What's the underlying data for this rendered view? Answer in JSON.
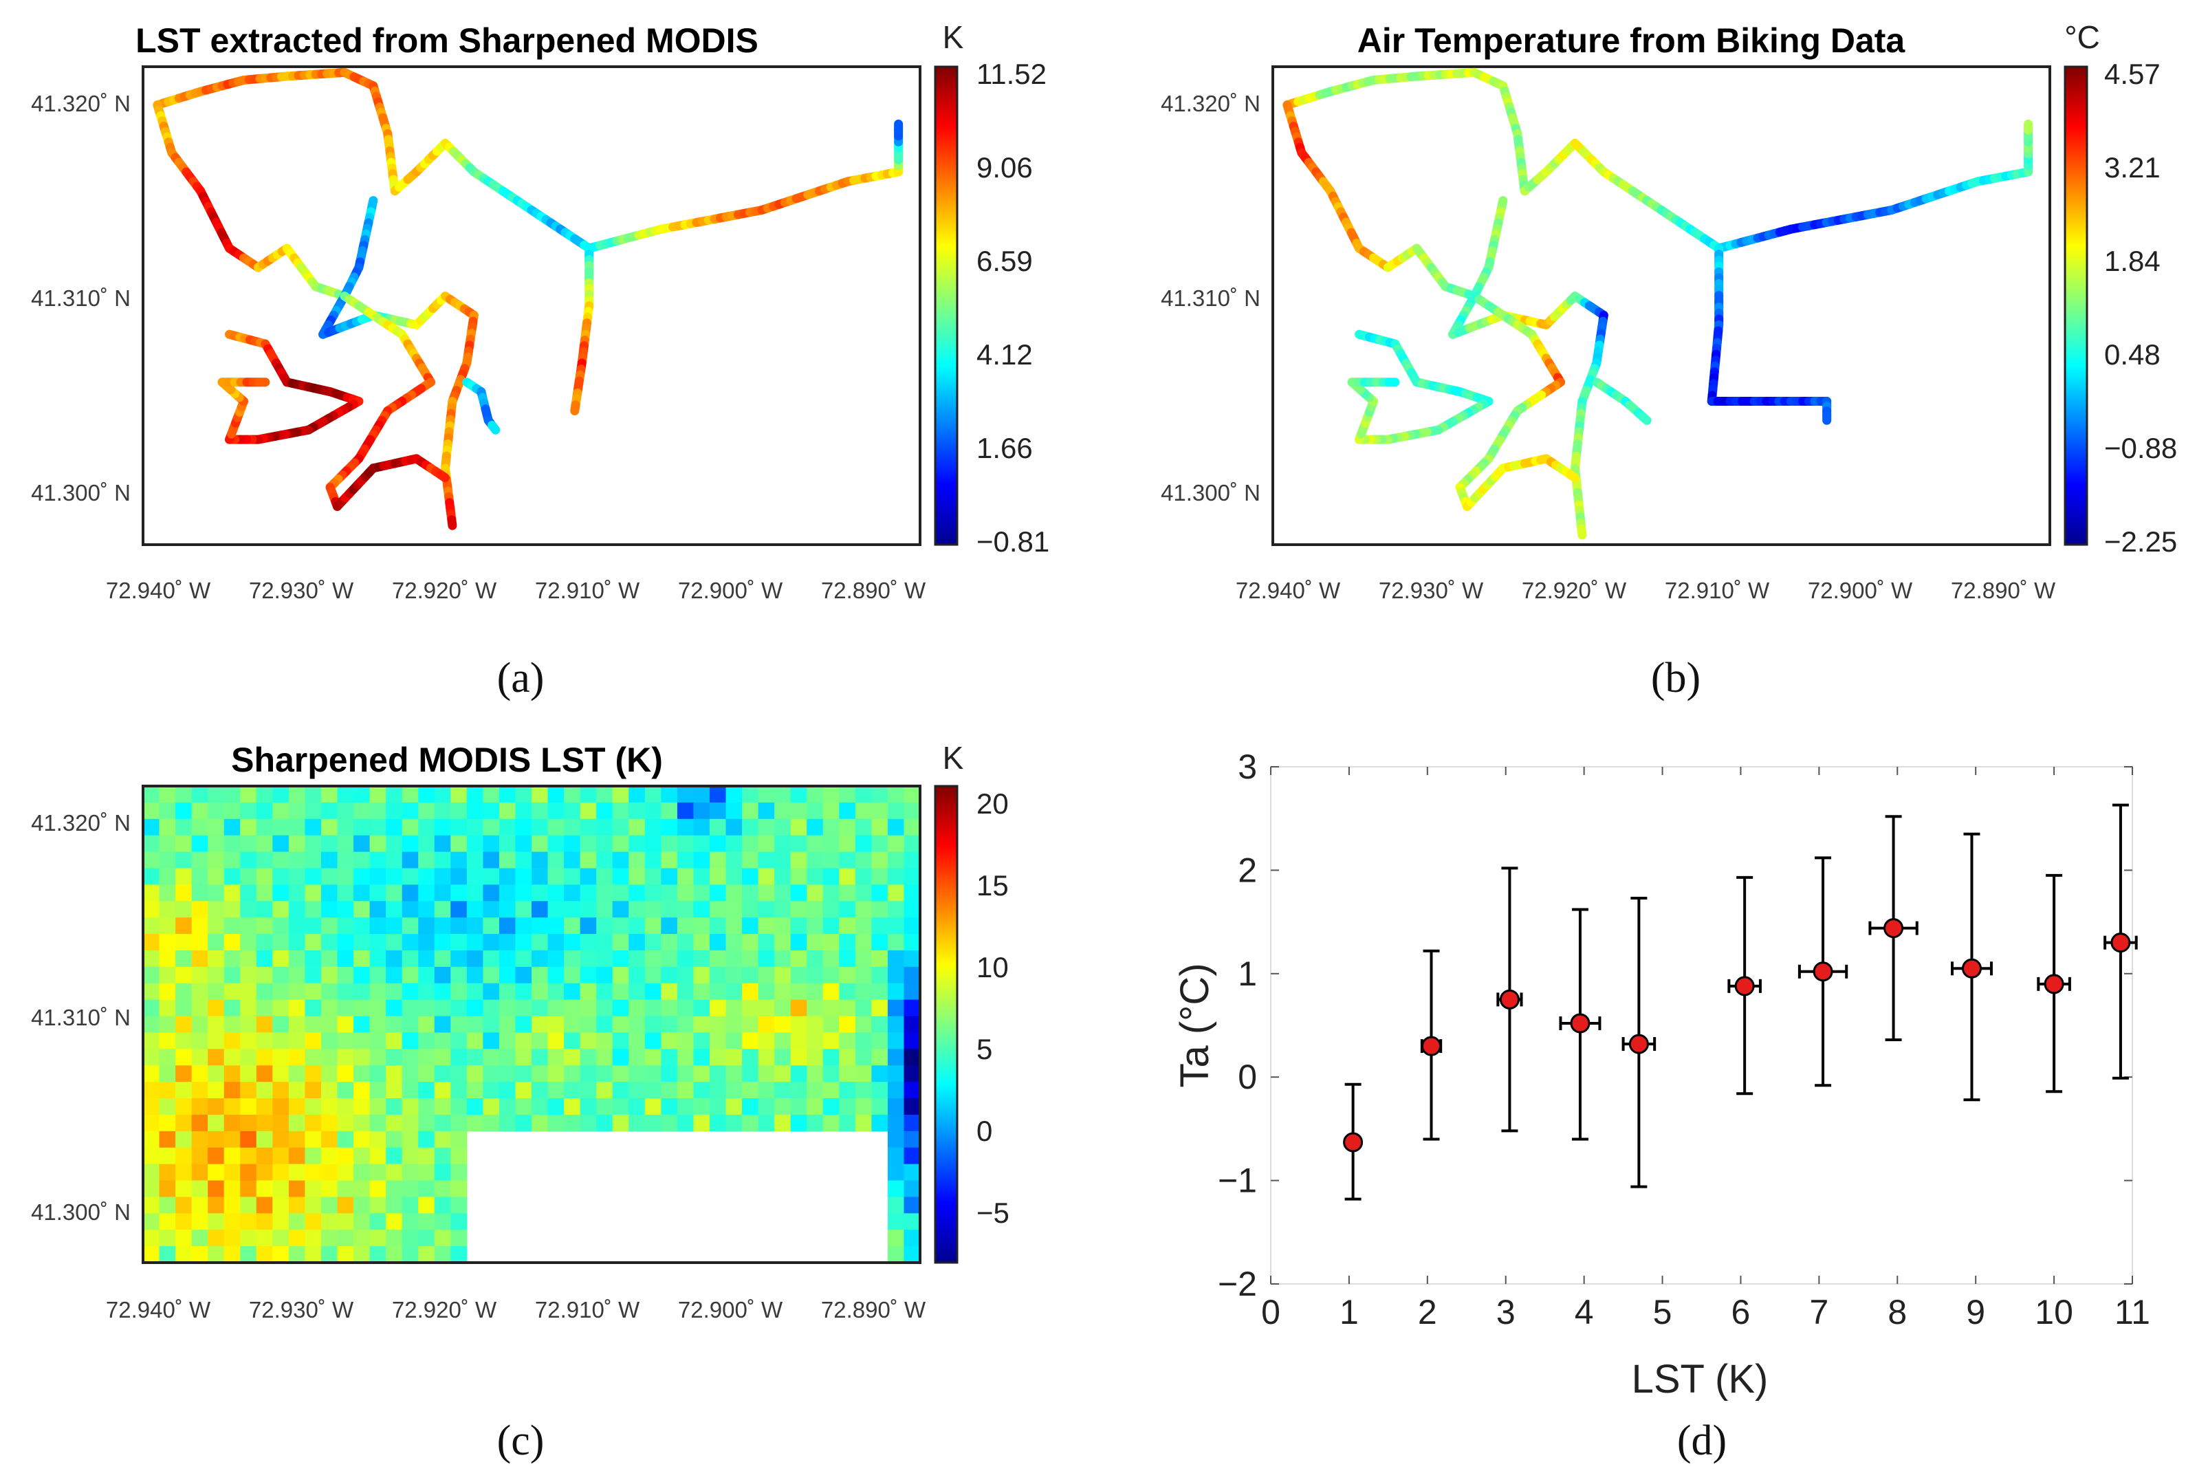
{
  "panels": {
    "a": {
      "title": "LST extracted from Sharpened MODIS",
      "unit": "K",
      "colorbar_ticks": [
        "11.52",
        "9.06",
        "6.59",
        "4.12",
        "1.66",
        "−0.81"
      ],
      "x_ticks": [
        "72.940˚ W",
        "72.930˚ W",
        "72.920˚ W",
        "72.910˚ W",
        "72.900˚ W",
        "72.890˚ W"
      ],
      "y_ticks": [
        "41.320˚ N",
        "41.310˚ N",
        "41.300˚ N"
      ],
      "label": "(a)"
    },
    "b": {
      "title": "Air Temperature from Biking Data",
      "unit": "°C",
      "colorbar_ticks": [
        "4.57",
        "3.21",
        "1.84",
        "0.48",
        "−0.88",
        "−2.25"
      ],
      "x_ticks": [
        "72.940˚ W",
        "72.930˚ W",
        "72.920˚ W",
        "72.910˚ W",
        "72.900˚ W",
        "72.890˚ W"
      ],
      "y_ticks": [
        "41.320˚ N",
        "41.310˚ N",
        "41.300˚ N"
      ],
      "label": "(b)"
    },
    "c": {
      "title": "Sharpened MODIS LST (K)",
      "unit": "K",
      "colorbar_ticks": [
        "20",
        "15",
        "10",
        "5",
        "0",
        "−5"
      ],
      "x_ticks": [
        "72.940˚ W",
        "72.930˚ W",
        "72.920˚ W",
        "72.910˚ W",
        "72.900˚ W",
        "72.890˚ W"
      ],
      "y_ticks": [
        "41.320˚ N",
        "41.310˚ N",
        "41.300˚ N"
      ],
      "label": "(c)"
    },
    "d": {
      "label": "(d)"
    }
  },
  "chart_data": [
    {
      "type": "line",
      "title": "LST extracted from Sharpened MODIS",
      "xlabel": "",
      "ylabel": "",
      "colorbar": {
        "unit": "K",
        "range": [
          -0.81,
          11.52
        ]
      },
      "xlim": [
        -72.941,
        -72.887
      ],
      "ylim": [
        41.2975,
        41.3225
      ],
      "tracks": [
        [
          [
            -72.94,
            41.3205,
            7.5
          ],
          [
            -72.937,
            41.3212,
            8.5
          ],
          [
            -72.934,
            41.3218,
            9
          ],
          [
            -72.931,
            41.322,
            8
          ],
          [
            -72.927,
            41.3222,
            8.5
          ],
          [
            -72.925,
            41.3215,
            9
          ],
          [
            -72.924,
            41.319,
            8
          ],
          [
            -72.9235,
            41.316,
            7
          ]
        ],
        [
          [
            -72.94,
            41.3205,
            7.5
          ],
          [
            -72.939,
            41.318,
            8
          ],
          [
            -72.937,
            41.316,
            10
          ],
          [
            -72.935,
            41.313,
            10.5
          ],
          [
            -72.933,
            41.312,
            8
          ],
          [
            -72.931,
            41.313,
            7.5
          ],
          [
            -72.929,
            41.311,
            6
          ],
          [
            -72.927,
            41.3105,
            5.5
          ]
        ],
        [
          [
            -72.9235,
            41.316,
            7
          ],
          [
            -72.922,
            41.317,
            7.5
          ],
          [
            -72.92,
            41.3185,
            7
          ],
          [
            -72.918,
            41.317,
            5
          ],
          [
            -72.915,
            41.3155,
            4
          ],
          [
            -72.912,
            41.314,
            3
          ],
          [
            -72.91,
            41.313,
            3.5
          ],
          [
            -72.905,
            41.314,
            7
          ],
          [
            -72.898,
            41.315,
            9
          ],
          [
            -72.892,
            41.3165,
            8
          ],
          [
            -72.8885,
            41.317,
            7
          ],
          [
            -72.8885,
            41.3195,
            1
          ]
        ],
        [
          [
            -72.91,
            41.313,
            3.5
          ],
          [
            -72.91,
            41.31,
            7
          ],
          [
            -72.9105,
            41.307,
            9.5
          ],
          [
            -72.911,
            41.3045,
            8
          ]
        ],
        [
          [
            -72.925,
            41.3155,
            3.5
          ],
          [
            -72.926,
            41.312,
            2
          ],
          [
            -72.927,
            41.3105,
            3
          ],
          [
            -72.9285,
            41.3085,
            1.5
          ],
          [
            -72.925,
            41.3095,
            4
          ],
          [
            -72.922,
            41.309,
            6.5
          ],
          [
            -72.92,
            41.3105,
            7.5
          ],
          [
            -72.918,
            41.3095,
            8.5
          ],
          [
            -72.9185,
            41.307,
            9
          ],
          [
            -72.9195,
            41.305,
            8.5
          ],
          [
            -72.92,
            41.3015,
            7.5
          ],
          [
            -72.9195,
            41.2985,
            10.5
          ]
        ],
        [
          [
            -72.927,
            41.3105,
            5.5
          ],
          [
            -72.923,
            41.3085,
            7
          ],
          [
            -72.921,
            41.306,
            9
          ],
          [
            -72.924,
            41.3045,
            9.5
          ],
          [
            -72.926,
            41.302,
            10
          ],
          [
            -72.928,
            41.3005,
            8.5
          ],
          [
            -72.9275,
            41.2995,
            10.5
          ],
          [
            -72.925,
            41.3015,
            11
          ],
          [
            -72.922,
            41.302,
            10.5
          ],
          [
            -72.92,
            41.301,
            9
          ]
        ],
        [
          [
            -72.9185,
            41.306,
            4
          ],
          [
            -72.9175,
            41.3055,
            3
          ],
          [
            -72.917,
            41.304,
            2
          ],
          [
            -72.9165,
            41.3035,
            4
          ]
        ],
        [
          [
            -72.935,
            41.3085,
            8
          ],
          [
            -72.9325,
            41.308,
            9
          ],
          [
            -72.931,
            41.306,
            11
          ],
          [
            -72.928,
            41.3055,
            11.5
          ],
          [
            -72.926,
            41.305,
            10
          ],
          [
            -72.9295,
            41.3035,
            11
          ],
          [
            -72.933,
            41.303,
            10.5
          ],
          [
            -72.935,
            41.303,
            9.5
          ],
          [
            -72.934,
            41.305,
            8.5
          ],
          [
            -72.9355,
            41.306,
            7.5
          ],
          [
            -72.9325,
            41.306,
            9.5
          ]
        ]
      ]
    },
    {
      "type": "line",
      "title": "Air Temperature from Biking Data",
      "xlabel": "",
      "ylabel": "",
      "colorbar": {
        "unit": "°C",
        "range": [
          -2.25,
          4.57
        ]
      },
      "xlim": [
        -72.941,
        -72.887
      ],
      "ylim": [
        41.2975,
        41.3225
      ],
      "tracks": [
        [
          [
            -72.94,
            41.3205,
            2.6
          ],
          [
            -72.937,
            41.3212,
            1.2
          ],
          [
            -72.934,
            41.3218,
            1.5
          ],
          [
            -72.931,
            41.322,
            1.4
          ],
          [
            -72.927,
            41.3222,
            1.8
          ],
          [
            -72.925,
            41.3215,
            1.6
          ],
          [
            -72.924,
            41.319,
            1.2
          ],
          [
            -72.9235,
            41.316,
            1.3
          ]
        ],
        [
          [
            -72.94,
            41.3205,
            2.6
          ],
          [
            -72.939,
            41.318,
            3.5
          ],
          [
            -72.937,
            41.316,
            2.6
          ],
          [
            -72.935,
            41.313,
            2.8
          ],
          [
            -72.933,
            41.312,
            2.2
          ],
          [
            -72.931,
            41.313,
            1.6
          ],
          [
            -72.929,
            41.311,
            1.2
          ],
          [
            -72.927,
            41.3105,
            0.8
          ]
        ],
        [
          [
            -72.9235,
            41.316,
            1.3
          ],
          [
            -72.922,
            41.317,
            1.5
          ],
          [
            -72.92,
            41.3185,
            2
          ],
          [
            -72.918,
            41.317,
            1.8
          ],
          [
            -72.915,
            41.3155,
            1.2
          ],
          [
            -72.912,
            41.314,
            0.6
          ],
          [
            -72.91,
            41.313,
            0.2
          ],
          [
            -72.905,
            41.314,
            -1.2
          ],
          [
            -72.898,
            41.315,
            -0.6
          ],
          [
            -72.892,
            41.3165,
            0.3
          ],
          [
            -72.8885,
            41.317,
            0.6
          ],
          [
            -72.8885,
            41.3195,
            1.3
          ]
        ],
        [
          [
            -72.91,
            41.313,
            0.2
          ],
          [
            -72.91,
            41.309,
            -0.9
          ],
          [
            -72.9105,
            41.305,
            -1.4
          ],
          [
            -72.905,
            41.305,
            -1.2
          ],
          [
            -72.9025,
            41.305,
            -0.9
          ],
          [
            -72.9025,
            41.304,
            -0.5
          ]
        ],
        [
          [
            -72.925,
            41.3155,
            1.5
          ],
          [
            -72.926,
            41.312,
            1.1
          ],
          [
            -72.927,
            41.3105,
            0.9
          ],
          [
            -72.9285,
            41.3085,
            0.6
          ],
          [
            -72.925,
            41.3095,
            1.8
          ],
          [
            -72.922,
            41.309,
            2.4
          ],
          [
            -72.92,
            41.3105,
            1.2
          ],
          [
            -72.918,
            41.3095,
            -1.3
          ],
          [
            -72.9185,
            41.307,
            0.4
          ],
          [
            -72.9195,
            41.305,
            0.8
          ],
          [
            -72.92,
            41.3015,
            1.5
          ],
          [
            -72.9195,
            41.298,
            1.5
          ]
        ],
        [
          [
            -72.927,
            41.3105,
            0.8
          ],
          [
            -72.923,
            41.3085,
            1.6
          ],
          [
            -72.921,
            41.306,
            3.3
          ],
          [
            -72.924,
            41.3045,
            1.2
          ],
          [
            -72.926,
            41.302,
            1.3
          ],
          [
            -72.928,
            41.3005,
            1.6
          ],
          [
            -72.9275,
            41.2995,
            1.9
          ],
          [
            -72.925,
            41.3015,
            1.8
          ],
          [
            -72.922,
            41.302,
            2.4
          ],
          [
            -72.92,
            41.301,
            1.8
          ]
        ],
        [
          [
            -72.9185,
            41.306,
            0.9
          ],
          [
            -72.9165,
            41.305,
            0.6
          ],
          [
            -72.915,
            41.304,
            0.8
          ]
        ],
        [
          [
            -72.935,
            41.3085,
            0.3
          ],
          [
            -72.9325,
            41.308,
            0.5
          ],
          [
            -72.931,
            41.306,
            0.8
          ],
          [
            -72.928,
            41.3055,
            0.6
          ],
          [
            -72.926,
            41.305,
            0.7
          ],
          [
            -72.9295,
            41.3035,
            1.0
          ],
          [
            -72.933,
            41.303,
            1.4
          ],
          [
            -72.935,
            41.303,
            1.6
          ],
          [
            -72.934,
            41.305,
            1.2
          ],
          [
            -72.9355,
            41.306,
            0.9
          ],
          [
            -72.9325,
            41.306,
            0.6
          ]
        ]
      ]
    },
    {
      "type": "heatmap",
      "title": "Sharpened MODIS LST (K)",
      "xlabel": "",
      "ylabel": "",
      "colorbar": {
        "unit": "K",
        "range": [
          -8,
          21
        ]
      },
      "xlim": [
        -72.941,
        -72.887
      ],
      "ylim": [
        41.2975,
        41.3225
      ],
      "grid_size": [
        48,
        29
      ],
      "missing_region": {
        "lon": [
          -72.9185,
          -72.8895
        ],
        "lat": [
          41.2975,
          41.3045
        ]
      },
      "pattern_note": "warm (yellow-orange) in the southwest and east-central areas, cooler (cyan-blue) through the north-central area and along the eastern edge"
    },
    {
      "type": "scatter",
      "title": "",
      "xlabel": "LST (K)",
      "ylabel": "Ta (°C)",
      "xlim": [
        0,
        11
      ],
      "ylim": [
        -2,
        3
      ],
      "xticks": [
        0,
        1,
        2,
        3,
        4,
        5,
        6,
        7,
        8,
        9,
        10,
        11
      ],
      "yticks": [
        -2,
        -1,
        0,
        1,
        2,
        3
      ],
      "ytick_labels": [
        "−2",
        "−1",
        "0",
        "1",
        "2",
        "3"
      ],
      "grid": false,
      "points": [
        {
          "x": 1.05,
          "y": -0.63,
          "y_low": -1.18,
          "y_high": -0.07,
          "x_err": 0
        },
        {
          "x": 2.05,
          "y": 0.3,
          "y_low": -0.6,
          "y_high": 1.22,
          "x_err": 0.12
        },
        {
          "x": 3.05,
          "y": 0.75,
          "y_low": -0.52,
          "y_high": 2.02,
          "x_err": 0.15
        },
        {
          "x": 3.95,
          "y": 0.52,
          "y_low": -0.6,
          "y_high": 1.62,
          "x_err": 0.25
        },
        {
          "x": 4.7,
          "y": 0.32,
          "y_low": -1.06,
          "y_high": 1.73,
          "x_err": 0.2
        },
        {
          "x": 6.05,
          "y": 0.88,
          "y_low": -0.16,
          "y_high": 1.93,
          "x_err": 0.2
        },
        {
          "x": 7.05,
          "y": 1.02,
          "y_low": -0.08,
          "y_high": 2.12,
          "x_err": 0.3
        },
        {
          "x": 7.95,
          "y": 1.44,
          "y_low": 0.36,
          "y_high": 2.52,
          "x_err": 0.3
        },
        {
          "x": 8.95,
          "y": 1.05,
          "y_low": -0.22,
          "y_high": 2.35,
          "x_err": 0.25
        },
        {
          "x": 10.0,
          "y": 0.9,
          "y_low": -0.14,
          "y_high": 1.95,
          "x_err": 0.2
        },
        {
          "x": 10.85,
          "y": 1.3,
          "y_low": -0.01,
          "y_high": 2.63,
          "x_err": 0.2
        }
      ]
    }
  ]
}
